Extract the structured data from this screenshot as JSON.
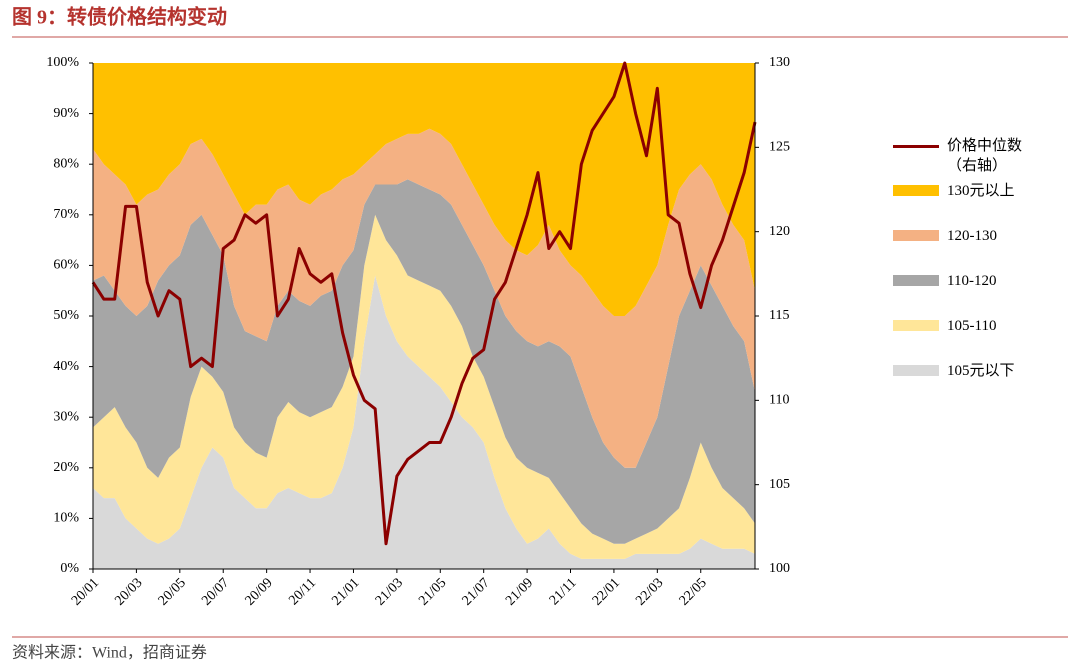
{
  "title": "图 9：转债价格结构变动",
  "source": "资料来源：Wind，招商证券",
  "chart_data": {
    "type": "stacked-area-line",
    "categories": [
      "20/01",
      null,
      null,
      null,
      "20/03",
      null,
      null,
      null,
      "20/05",
      null,
      null,
      null,
      "20/07",
      null,
      null,
      null,
      "20/09",
      null,
      null,
      null,
      "20/11",
      null,
      null,
      null,
      "21/01",
      null,
      null,
      null,
      "21/03",
      null,
      null,
      null,
      "21/05",
      null,
      null,
      null,
      "21/07",
      null,
      null,
      null,
      "21/09",
      null,
      null,
      null,
      "21/11",
      null,
      null,
      null,
      "22/01",
      null,
      null,
      null,
      "22/03",
      null,
      null,
      null,
      "22/05",
      null,
      null,
      null,
      null,
      null
    ],
    "ylim": [
      0,
      100
    ],
    "yticks": [
      {
        "value": 0,
        "label": "0%"
      },
      {
        "value": 10,
        "label": "10%"
      },
      {
        "value": 20,
        "label": "20%"
      },
      {
        "value": 30,
        "label": "30%"
      },
      {
        "value": 40,
        "label": "40%"
      },
      {
        "value": 50,
        "label": "50%"
      },
      {
        "value": 60,
        "label": "60%"
      },
      {
        "value": 70,
        "label": "70%"
      },
      {
        "value": 80,
        "label": "80%"
      },
      {
        "value": 90,
        "label": "90%"
      },
      {
        "value": 100,
        "label": "100%"
      }
    ],
    "y2lim": [
      100,
      130
    ],
    "y2ticks": [
      100,
      105,
      110,
      115,
      120,
      125,
      130
    ],
    "series": [
      {
        "name": "105元以下",
        "color": "#d9d9d9",
        "values": [
          16,
          14,
          14,
          10,
          8,
          6,
          5,
          6,
          8,
          14,
          20,
          24,
          22,
          16,
          14,
          12,
          12,
          15,
          16,
          15,
          14,
          14,
          15,
          20,
          28,
          45,
          58,
          50,
          45,
          42,
          40,
          38,
          36,
          33,
          30,
          28,
          25,
          18,
          12,
          8,
          5,
          6,
          8,
          5,
          3,
          2,
          2,
          2,
          2,
          2,
          3,
          3,
          3,
          3,
          3,
          4,
          6,
          5,
          4,
          4,
          4,
          3
        ]
      },
      {
        "name": "105-110",
        "color": "#ffe699",
        "values": [
          12,
          16,
          18,
          18,
          17,
          14,
          13,
          16,
          16,
          20,
          20,
          14,
          13,
          12,
          11,
          11,
          10,
          15,
          17,
          16,
          16,
          17,
          17,
          16,
          14,
          15,
          12,
          15,
          17,
          16,
          17,
          18,
          19,
          19,
          18,
          14,
          13,
          14,
          14,
          14,
          15,
          13,
          10,
          10,
          9,
          7,
          5,
          4,
          3,
          3,
          3,
          4,
          5,
          7,
          9,
          14,
          19,
          15,
          12,
          10,
          8,
          6
        ]
      },
      {
        "name": "110-120",
        "color": "#a6a6a6",
        "values": [
          29,
          28,
          23,
          24,
          25,
          32,
          39,
          38,
          38,
          34,
          30,
          28,
          27,
          24,
          22,
          23,
          23,
          22,
          22,
          22,
          22,
          23,
          23,
          24,
          21,
          12,
          6,
          11,
          14,
          19,
          19,
          19,
          19,
          20,
          20,
          22,
          22,
          23,
          24,
          25,
          25,
          25,
          27,
          29,
          30,
          27,
          23,
          19,
          17,
          15,
          14,
          18,
          22,
          30,
          38,
          37,
          35,
          36,
          36,
          34,
          33,
          26
        ]
      },
      {
        "name": "120-130",
        "color": "#f4b183",
        "values": [
          26,
          22,
          23,
          24,
          22,
          22,
          18,
          18,
          18,
          16,
          15,
          16,
          16,
          22,
          23,
          26,
          27,
          23,
          21,
          20,
          20,
          20,
          20,
          17,
          15,
          8,
          6,
          8,
          9,
          9,
          10,
          12,
          12,
          12,
          12,
          12,
          12,
          13,
          15,
          16,
          17,
          20,
          23,
          19,
          18,
          22,
          25,
          27,
          28,
          30,
          32,
          31,
          30,
          28,
          25,
          23,
          20,
          21,
          20,
          20,
          20,
          20
        ]
      },
      {
        "name": "130元以上",
        "color": "#ffc000",
        "values": [
          17,
          20,
          22,
          24,
          28,
          26,
          25,
          22,
          20,
          16,
          15,
          18,
          22,
          26,
          30,
          28,
          28,
          25,
          24,
          27,
          28,
          26,
          25,
          23,
          22,
          20,
          18,
          16,
          15,
          14,
          14,
          13,
          14,
          16,
          20,
          24,
          28,
          32,
          35,
          37,
          38,
          36,
          32,
          37,
          40,
          42,
          45,
          48,
          50,
          50,
          48,
          44,
          40,
          32,
          25,
          22,
          20,
          23,
          28,
          32,
          35,
          45
        ]
      },
      {
        "name": "价格中位数（右轴）",
        "color": "#8b0000",
        "axis": "y2",
        "values": [
          117,
          116,
          116,
          121.5,
          121.5,
          117,
          115,
          116.5,
          116,
          112,
          112.5,
          112,
          119,
          119.5,
          121,
          120.5,
          121,
          115,
          116,
          119,
          117.5,
          117,
          117.5,
          114,
          111.5,
          110,
          109.5,
          101.5,
          105.5,
          106.5,
          107,
          107.5,
          107.5,
          109,
          111,
          112.5,
          113,
          116,
          117,
          119,
          121,
          123.5,
          119,
          120,
          119,
          124,
          126,
          127,
          128,
          130,
          127,
          124.5,
          128.5,
          121,
          120.5,
          117.5,
          115.5,
          118,
          119.5,
          121.5,
          123.5,
          126.5
        ]
      }
    ]
  }
}
